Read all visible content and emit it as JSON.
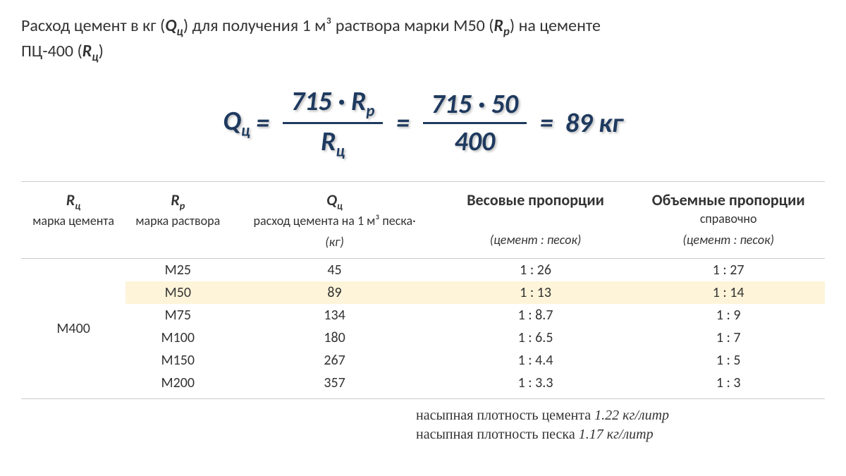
{
  "intro": {
    "p1a": "Расход цемент в кг (",
    "q_sym": "Q",
    "q_sub": "ц",
    "p1b": ") для получения 1 м³ раствора марки М50 (",
    "r_sym": "R",
    "rp_sub": "р",
    "p1c": ")  на цементе",
    "p2a": "ПЦ-400 (",
    "rc_sub": "ц",
    "p2b": ")"
  },
  "formula": {
    "Q": "Q",
    "Q_sub": "ц",
    "eq": "=",
    "num1a": "715 · ",
    "R": "R",
    "Rp_sub": "р",
    "Rc_sub": "ц",
    "num2": "715 · 50",
    "den2": "400",
    "result": "89",
    "unit": "кг"
  },
  "table": {
    "headers": {
      "c1": {
        "main_sym": "R",
        "main_sub": "ц",
        "note": "марка цемента",
        "unit": ""
      },
      "c2": {
        "main_sym": "R",
        "main_sub": "р",
        "note": "марка раствора",
        "unit": ""
      },
      "c3": {
        "main_sym": "Q",
        "main_sub": "ц",
        "note": "расход цемента на 1 м³ песка·",
        "unit": "(кг)"
      },
      "c4": {
        "main": "Весовые пропорции",
        "unit": "(цемент : песок)"
      },
      "c5": {
        "main": "Объемные пропорции",
        "note": "справочно",
        "unit": "(цемент : песок)"
      }
    },
    "cement_grade": "М400",
    "highlight_index": 1,
    "rows": [
      {
        "rp": "М25",
        "q": "45",
        "w": "1 : 26",
        "v": "1 : 27"
      },
      {
        "rp": "М50",
        "q": "89",
        "w": "1 : 13",
        "v": "1 : 14"
      },
      {
        "rp": "М75",
        "q": "134",
        "w": "1 : 8.7",
        "v": "1 : 9"
      },
      {
        "rp": "М100",
        "q": "180",
        "w": "1 : 6.5",
        "v": "1 : 7"
      },
      {
        "rp": "М150",
        "q": "267",
        "w": "1 : 4.4",
        "v": "1 : 5"
      },
      {
        "rp": "М200",
        "q": "357",
        "w": "1 : 3.3",
        "v": "1 : 3"
      }
    ]
  },
  "footnotes": {
    "f1_label": "насыпная плотность цемента ",
    "f1_val": "1.22  кг/литр",
    "f2_label": "насыпная плотность песка ",
    "f2_val": "1.17  кг/литр"
  },
  "style": {
    "formula_color": "#1f3a5f",
    "highlight_bg": "#fdf4d9",
    "border_color": "#cccccc",
    "text_color": "#333333"
  }
}
